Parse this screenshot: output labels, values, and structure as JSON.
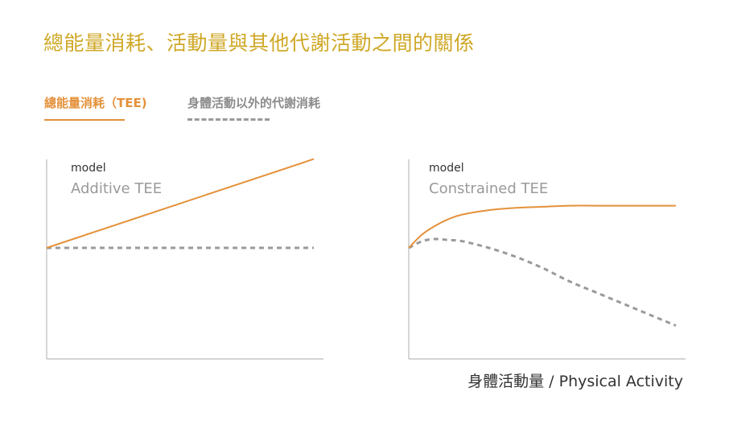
{
  "title": "總能量消耗、活動量與其他代謝活動之間的關係",
  "legend": {
    "tee": "總能量消耗（TEE)",
    "other": "身體活動以外的代謝消耗"
  },
  "colors": {
    "title": "#cfa827",
    "tee": "#e4913a",
    "other": "#9a9a9a",
    "axis": "#bbbbbb"
  },
  "chart_data": [
    {
      "type": "line",
      "model_label": "model",
      "model_name": "Additive TEE",
      "xlim": [
        0,
        1
      ],
      "ylim": [
        0,
        1
      ],
      "series": [
        {
          "name": "總能量消耗（TEE)",
          "style": "solid",
          "x": [
            0,
            1
          ],
          "y": [
            0.5,
            0.9
          ]
        },
        {
          "name": "身體活動以外的代謝消耗",
          "style": "dashed",
          "x": [
            0,
            1
          ],
          "y": [
            0.5,
            0.5
          ]
        }
      ]
    },
    {
      "type": "line",
      "model_label": "model",
      "model_name": "Constrained TEE",
      "xlim": [
        0,
        1
      ],
      "ylim": [
        0,
        1
      ],
      "series": [
        {
          "name": "總能量消耗（TEE)",
          "style": "solid",
          "x": [
            0,
            0.05,
            0.1,
            0.15,
            0.2,
            0.3,
            0.4,
            0.5,
            0.6,
            0.7,
            0.8,
            0.9,
            1.0
          ],
          "y": [
            0.5,
            0.56,
            0.6,
            0.63,
            0.65,
            0.67,
            0.68,
            0.685,
            0.69,
            0.69,
            0.69,
            0.69,
            0.69
          ]
        },
        {
          "name": "身體活動以外的代謝消耗",
          "style": "dashed",
          "x": [
            0,
            0.05,
            0.1,
            0.15,
            0.2,
            0.3,
            0.4,
            0.5,
            0.6,
            0.7,
            0.8,
            0.9,
            1.0
          ],
          "y": [
            0.5,
            0.53,
            0.54,
            0.535,
            0.53,
            0.5,
            0.46,
            0.41,
            0.35,
            0.3,
            0.25,
            0.2,
            0.15
          ]
        }
      ]
    }
  ],
  "xlabel": "身體活動量 / Physical Activity"
}
